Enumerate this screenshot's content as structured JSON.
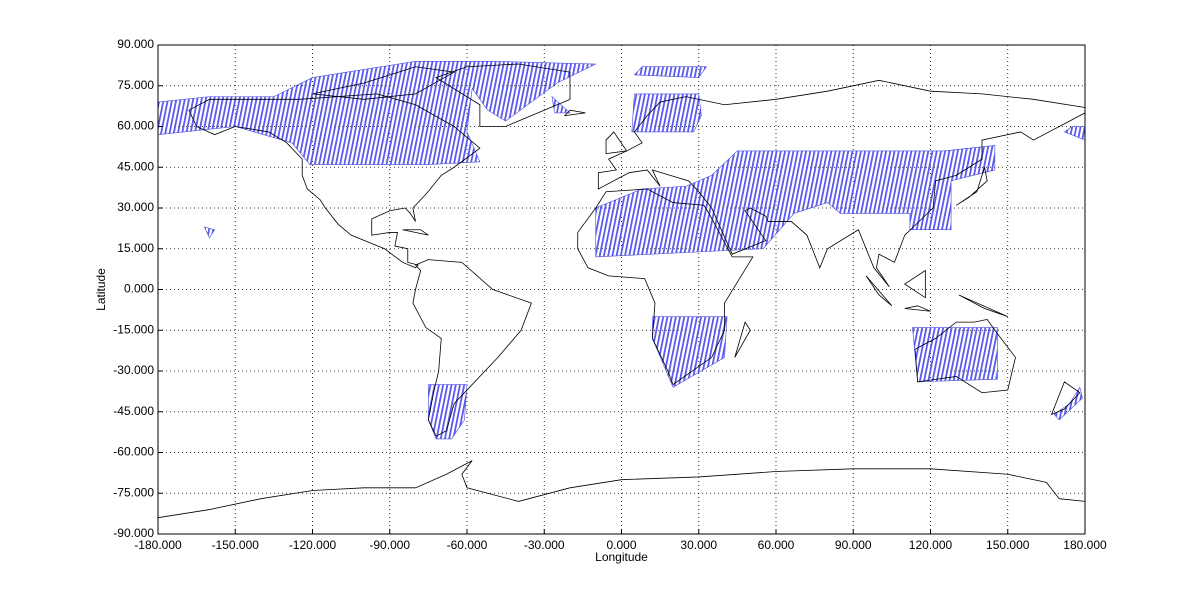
{
  "chart_data": {
    "type": "map",
    "xlabel": "Longitude",
    "ylabel": "Latitude",
    "xlim": [
      -180,
      180
    ],
    "ylim": [
      -90,
      90
    ],
    "xticks": [
      {
        "value": -180,
        "label": "-180.000"
      },
      {
        "value": -150,
        "label": "-150.000"
      },
      {
        "value": -120,
        "label": "-120.000"
      },
      {
        "value": -90,
        "label": "-90.000"
      },
      {
        "value": -60,
        "label": "-60.000"
      },
      {
        "value": -30,
        "label": "-30.000"
      },
      {
        "value": 0,
        "label": "0.000"
      },
      {
        "value": 30,
        "label": "30.000"
      },
      {
        "value": 60,
        "label": "60.000"
      },
      {
        "value": 90,
        "label": "90.000"
      },
      {
        "value": 120,
        "label": "120.000"
      },
      {
        "value": 150,
        "label": "150.000"
      },
      {
        "value": 180,
        "label": "180.000"
      }
    ],
    "yticks": [
      {
        "value": -90,
        "label": "-90.000"
      },
      {
        "value": -75,
        "label": "-75.000"
      },
      {
        "value": -60,
        "label": "-60.000"
      },
      {
        "value": -45,
        "label": "-45.000"
      },
      {
        "value": -30,
        "label": "-30.000"
      },
      {
        "value": -15,
        "label": "-15.000"
      },
      {
        "value": 0,
        "label": "0.000"
      },
      {
        "value": 15,
        "label": "15.000"
      },
      {
        "value": 30,
        "label": "30.000"
      },
      {
        "value": 45,
        "label": "45.000"
      },
      {
        "value": 60,
        "label": "60.000"
      },
      {
        "value": 75,
        "label": "75.000"
      },
      {
        "value": 90,
        "label": "90.000"
      }
    ],
    "grid": true
  }
}
